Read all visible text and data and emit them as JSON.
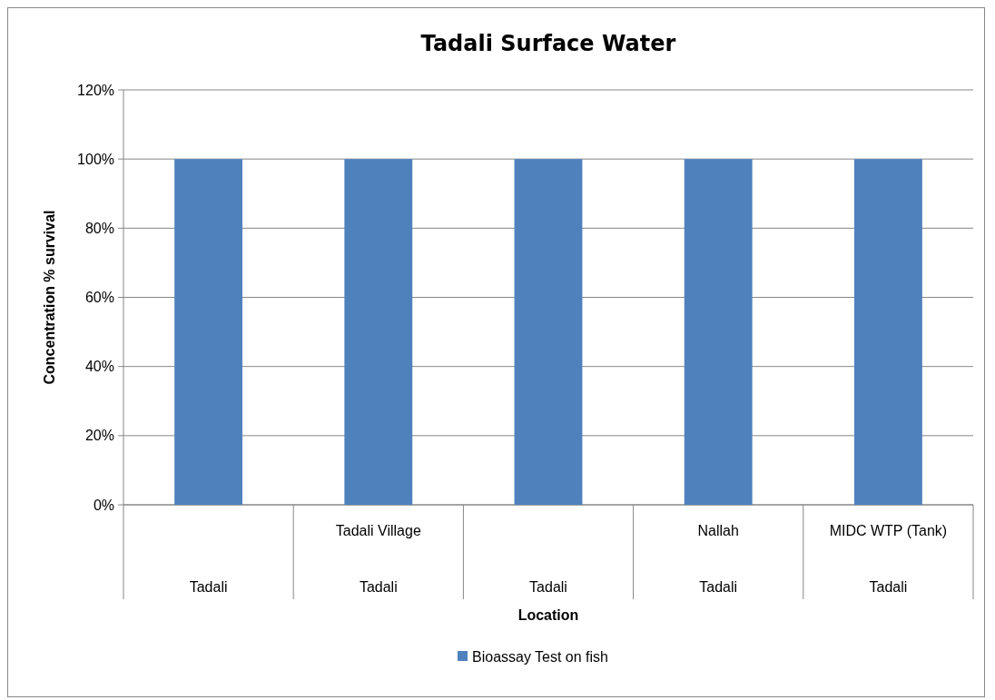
{
  "chart_data": {
    "type": "bar",
    "title": "Tadali Surface Water",
    "xlabel": "Location",
    "ylabel": "Concentration % survival",
    "categories": [
      null,
      "Tadali Village",
      null,
      "Nallah",
      "MIDC WTP (Tank)"
    ],
    "annotations": [
      "Tadali",
      "Tadali",
      "Tadali",
      "Tadali",
      "Tadali"
    ],
    "series": [
      {
        "name": "Bioassay Test on fish",
        "color": "#4f81bd",
        "values": [
          100,
          100,
          100,
          100,
          100
        ]
      }
    ],
    "ylim": [
      0,
      120
    ],
    "yticks": [
      {
        "value": 0,
        "label": "0%"
      },
      {
        "value": 20,
        "label": "20%"
      },
      {
        "value": 40,
        "label": "40%"
      },
      {
        "value": 60,
        "label": "60%"
      },
      {
        "value": 80,
        "label": "80%"
      },
      {
        "value": 100,
        "label": "100%"
      },
      {
        "value": 120,
        "label": "120%"
      }
    ],
    "grid": "y",
    "legend": "bottom"
  }
}
